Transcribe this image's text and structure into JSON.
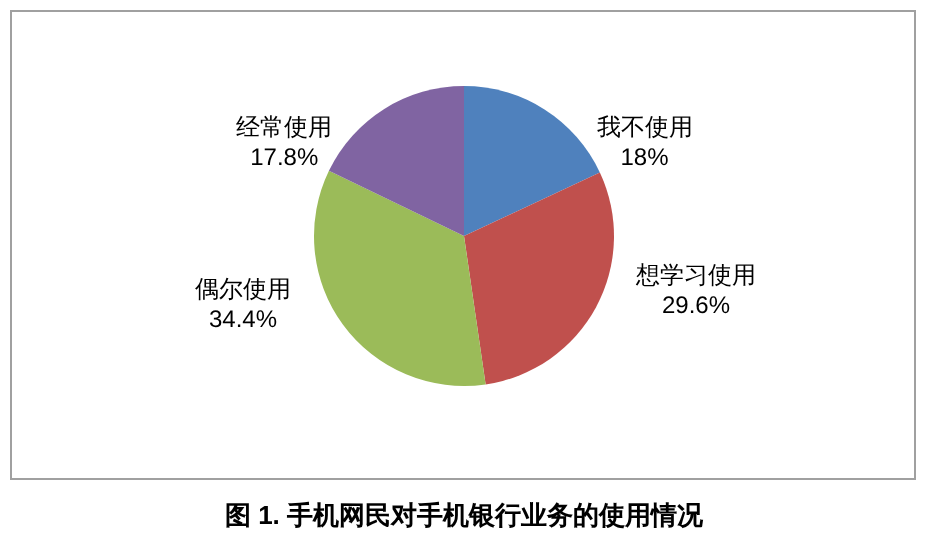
{
  "chart_data": {
    "type": "pie",
    "categories": [
      "我不使用",
      "想学习使用",
      "偶尔使用",
      "经常使用"
    ],
    "values": [
      18,
      29.6,
      34.4,
      17.8
    ],
    "value_labels": [
      "18%",
      "29.6%",
      "34.4%",
      "17.8%"
    ],
    "colors": [
      "#4f81bd",
      "#c0504d",
      "#9bbb59",
      "#8064a2"
    ],
    "legend": false,
    "annotations": [
      "图 1. 手机网民对手机银行业务的使用情况"
    ]
  }
}
